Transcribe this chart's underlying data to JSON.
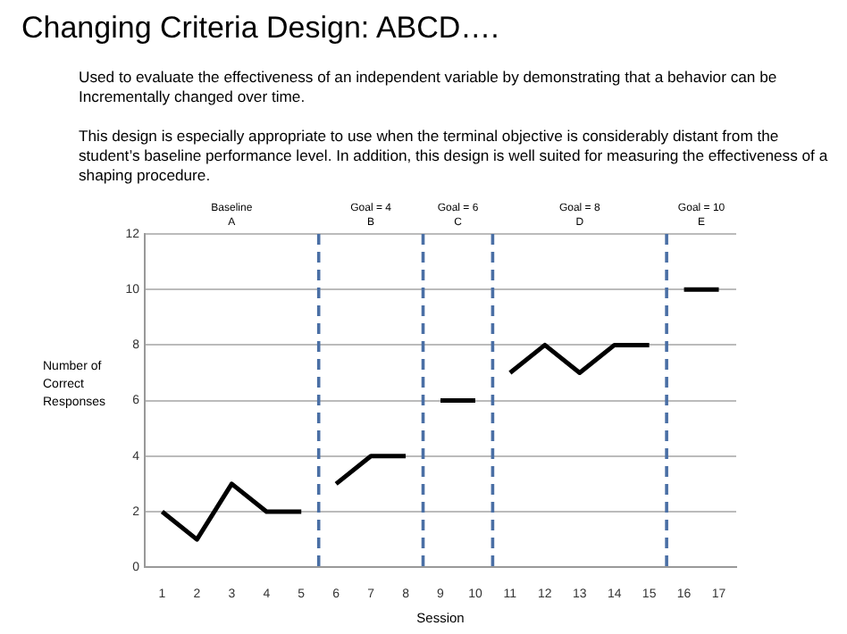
{
  "chart_data": {
    "type": "line",
    "title": "Changing Criteria Design: ABCD….",
    "subtitle": "Used to evaluate the effectiveness of an independent variable by demonstrating that a behavior can be Incrementally changed over time.\n\nThis design is especially appropriate to use when the terminal objective is considerably distant from the student’s baseline performance level.  In addition, this design is well suited for measuring the effectiveness of a shaping procedure.",
    "xlabel": "Session",
    "ylabel": "Number of Correct Responses",
    "xlim": [
      0.5,
      17.5
    ],
    "xticks": [
      1,
      2,
      3,
      4,
      5,
      6,
      7,
      8,
      9,
      10,
      11,
      12,
      13,
      14,
      15,
      16,
      17
    ],
    "ylim": [
      0,
      12
    ],
    "yticks": [
      0,
      2,
      4,
      6,
      8,
      10,
      12
    ],
    "series": [
      {
        "color": "#000000",
        "x": [
          1,
          2,
          3,
          4,
          5
        ],
        "values": [
          2,
          1,
          3,
          2,
          2
        ]
      },
      {
        "color": "#000000",
        "x": [
          6,
          7,
          8
        ],
        "values": [
          3,
          4,
          4
        ]
      },
      {
        "color": "#000000",
        "x": [
          9,
          10
        ],
        "values": [
          6,
          6
        ]
      },
      {
        "color": "#000000",
        "x": [
          11,
          12,
          13,
          14,
          15
        ],
        "values": [
          7,
          8,
          7,
          8,
          8
        ]
      },
      {
        "color": "#000000",
        "x": [
          16,
          17
        ],
        "values": [
          10,
          10
        ]
      }
    ],
    "ref_lines": [
      {
        "axis": "x",
        "value": 5.5,
        "color": "#4a6fa5",
        "line_style": "dashed"
      },
      {
        "axis": "x",
        "value": 8.5,
        "color": "#4a6fa5",
        "line_style": "dashed"
      },
      {
        "axis": "x",
        "value": 10.5,
        "color": "#4a6fa5",
        "line_style": "dashed"
      },
      {
        "axis": "x",
        "value": 15.5,
        "color": "#4a6fa5",
        "line_style": "dashed"
      }
    ],
    "annotations": [
      "Baseline\nA",
      "Goal = 4\nB",
      "Goal = 6\nC",
      "Goal = 8\nD",
      "Goal = 10\nE"
    ],
    "grid": "y",
    "legend": false,
    "marker": "none",
    "line_style": "solid"
  }
}
